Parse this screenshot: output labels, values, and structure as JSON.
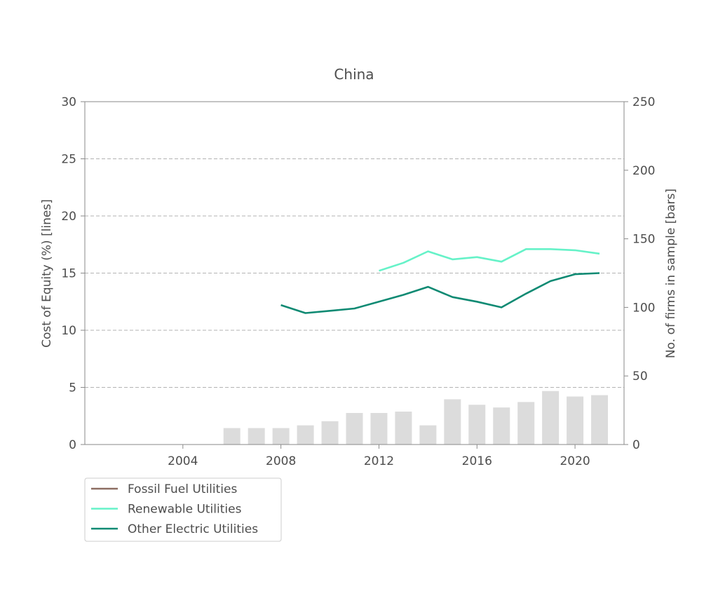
{
  "chart_data": {
    "type": "line",
    "title": "China",
    "ylabel": "Cost of Equity (%) [lines]",
    "y2label": "No. of firms in sample [bars]",
    "xlim": [
      2000,
      2022
    ],
    "ylim": [
      0,
      30
    ],
    "y2lim": [
      0,
      250
    ],
    "xticks": [
      "2004",
      "2008",
      "2012",
      "2016",
      "2020"
    ],
    "yticks": [
      "0",
      "5",
      "10",
      "15",
      "20",
      "25",
      "30"
    ],
    "y2ticks": [
      "0",
      "50",
      "100",
      "150",
      "200",
      "250"
    ],
    "grid": "horizontal dashed",
    "legend_position": "bottom-left below plot",
    "bars": {
      "color": "#dcdcdc",
      "x": [
        2006,
        2007,
        2008,
        2009,
        2010,
        2011,
        2012,
        2013,
        2014,
        2015,
        2016,
        2017,
        2018,
        2019,
        2020,
        2021
      ],
      "values": [
        12,
        12,
        12,
        14,
        17,
        23,
        23,
        24,
        14,
        33,
        29,
        27,
        31,
        39,
        35,
        36
      ]
    },
    "series": [
      {
        "name": "Fossil Fuel Utilities",
        "color": "#8c6d62",
        "x": [],
        "values": []
      },
      {
        "name": "Renewable Utilities",
        "color": "#66f2c8",
        "x": [
          2012,
          2013,
          2014,
          2015,
          2016,
          2017,
          2018,
          2019,
          2020,
          2021
        ],
        "values": [
          15.2,
          15.9,
          16.9,
          16.2,
          16.4,
          16.0,
          17.1,
          17.1,
          17.0,
          16.7
        ]
      },
      {
        "name": "Other Electric Utilities",
        "color": "#0f8a73",
        "x": [
          2008,
          2009,
          2010,
          2011,
          2012,
          2013,
          2014,
          2015,
          2016,
          2017,
          2018,
          2019,
          2020,
          2021
        ],
        "values": [
          12.2,
          11.5,
          11.7,
          11.9,
          12.5,
          13.1,
          13.8,
          12.9,
          12.5,
          12.0,
          13.2,
          14.3,
          14.9,
          15.0
        ]
      }
    ]
  }
}
